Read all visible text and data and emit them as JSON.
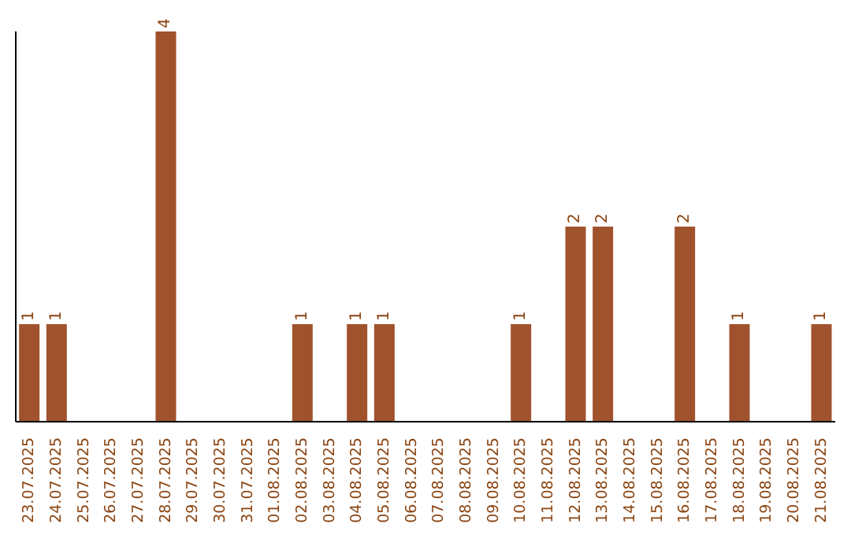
{
  "chart_data": {
    "type": "bar",
    "categories": [
      "23.07.2025",
      "24.07.2025",
      "25.07.2025",
      "26.07.2025",
      "27.07.2025",
      "28.07.2025",
      "29.07.2025",
      "30.07.2025",
      "31.07.2025",
      "01.08.2025",
      "02.08.2025",
      "03.08.2025",
      "04.08.2025",
      "05.08.2025",
      "06.08.2025",
      "07.08.2025",
      "08.08.2025",
      "09.08.2025",
      "10.08.2025",
      "11.08.2025",
      "12.08.2025",
      "13.08.2025",
      "14.08.2025",
      "15.08.2025",
      "16.08.2025",
      "17.08.2025",
      "18.08.2025",
      "19.08.2025",
      "20.08.2025",
      "21.08.2025"
    ],
    "values": [
      1,
      1,
      0,
      0,
      0,
      4,
      0,
      0,
      0,
      0,
      1,
      0,
      1,
      1,
      0,
      0,
      0,
      0,
      1,
      0,
      2,
      2,
      0,
      0,
      2,
      0,
      1,
      0,
      0,
      1
    ],
    "value_labels": [
      "1",
      "1",
      null,
      null,
      null,
      "4",
      null,
      null,
      null,
      null,
      "1",
      null,
      "1",
      "1",
      null,
      null,
      null,
      null,
      "1",
      null,
      "2",
      "2",
      null,
      null,
      "2",
      null,
      "1",
      null,
      null,
      "1"
    ],
    "color": "#a0522d",
    "tick_labels": "x"
  }
}
